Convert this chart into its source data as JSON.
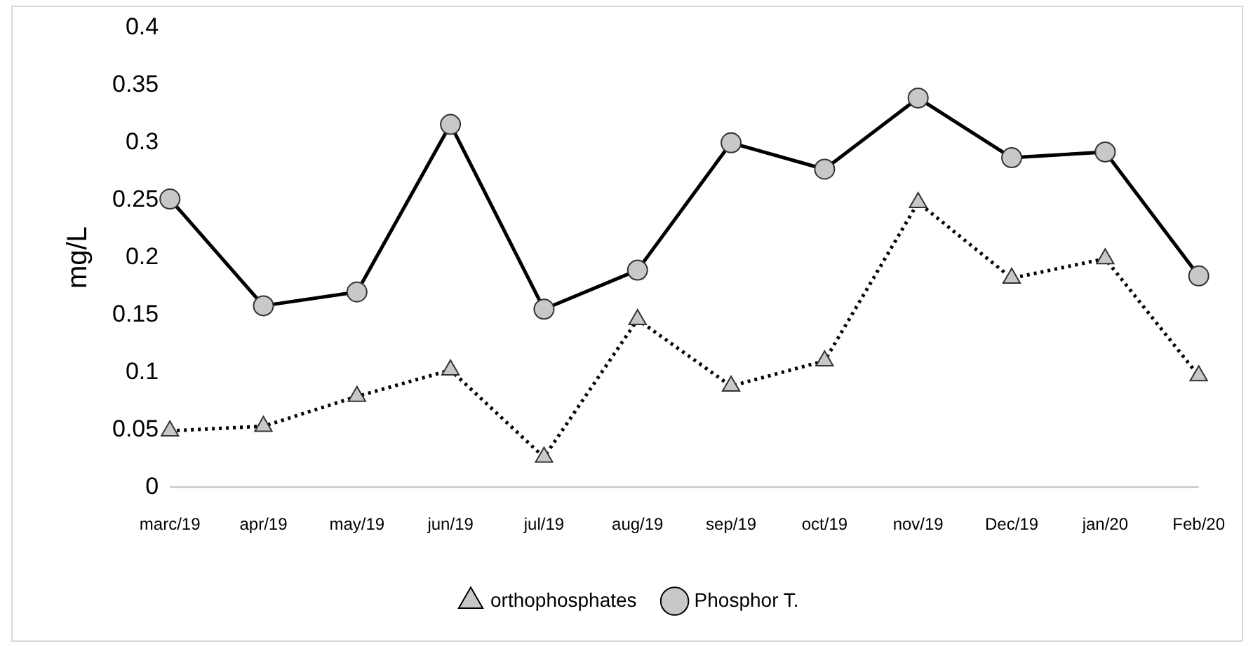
{
  "chart_data": {
    "type": "line",
    "ylabel": "mg/L",
    "categories": [
      "marc/19",
      "apr/19",
      "may/19",
      "jun/19",
      "jul/19",
      "aug/19",
      "sep/19",
      "oct/19",
      "nov/19",
      "Dec/19",
      "jan/20",
      "Feb/20"
    ],
    "series": [
      {
        "name": "orthophosphates",
        "color": "#000000",
        "marker": "triangle",
        "line_style": "dotted",
        "values": [
          0.049,
          0.053,
          0.079,
          0.102,
          0.026,
          0.146,
          0.088,
          0.11,
          0.248,
          0.182,
          0.199,
          0.097
        ]
      },
      {
        "name": "Phosphor T.",
        "color": "#000000",
        "marker": "circle",
        "line_style": "solid",
        "values": [
          0.251,
          0.158,
          0.17,
          0.316,
          0.155,
          0.189,
          0.3,
          0.277,
          0.339,
          0.287,
          0.292,
          0.184
        ]
      }
    ],
    "ylim": [
      0,
      0.4
    ],
    "yticks": [
      0,
      0.05,
      0.1,
      0.15,
      0.2,
      0.25,
      0.3,
      0.35,
      0.4
    ],
    "grid": false,
    "legend": "bottom"
  }
}
